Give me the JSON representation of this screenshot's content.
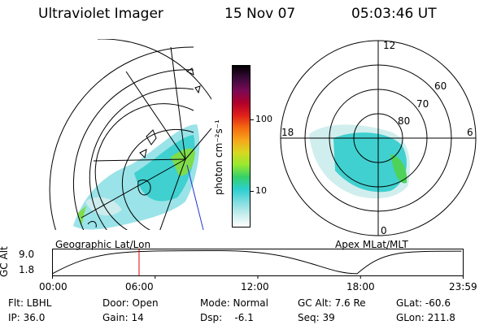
{
  "header": {
    "title": "Ultraviolet Imager",
    "date": "15 Nov 07",
    "time": "05:03:46 UT"
  },
  "geo_panel": {
    "label": "Geographic Lat/Lon"
  },
  "polar_panel": {
    "label": "Apex  MLat/MLT",
    "mlt_labels": [
      "12",
      "18",
      "6",
      "0"
    ],
    "lat_labels": [
      "60",
      "70",
      "80"
    ]
  },
  "colorbar": {
    "unit_label": "photon cm⁻²s⁻¹",
    "tick_labels": [
      "100",
      "10"
    ],
    "colors": [
      "#000000",
      "#3a0a3a",
      "#7a0a55",
      "#b0002a",
      "#e0201a",
      "#f56a10",
      "#f7a61a",
      "#d8d820",
      "#98e830",
      "#34d06a",
      "#2dcfd1",
      "#7fdde0",
      "#c7eded",
      "#ffffff"
    ]
  },
  "altitude_plot": {
    "ylabel": "GC Alt",
    "y_ticks": [
      "9.0",
      "1.8"
    ],
    "x_ticks": [
      "00:00",
      "06:00",
      "12:00",
      "18:00",
      "23:59"
    ],
    "current_time_hours": 5.06,
    "apogee_hours": [
      9.8,
      23.9
    ],
    "perigee_hours": [
      0.0,
      17.8
    ]
  },
  "status": {
    "flt": "Flt: LBHL",
    "ip": "IP: 36.0",
    "door": "Door: Open",
    "gain": "Gain: 14",
    "mode": "Mode: Normal",
    "dsp": "Dsp:    -6.1",
    "gc_alt": "GC Alt: 7.6 Re",
    "seq": "Seq: 39",
    "glat": "GLat: -60.6",
    "glon": "GLon: 211.8"
  }
}
